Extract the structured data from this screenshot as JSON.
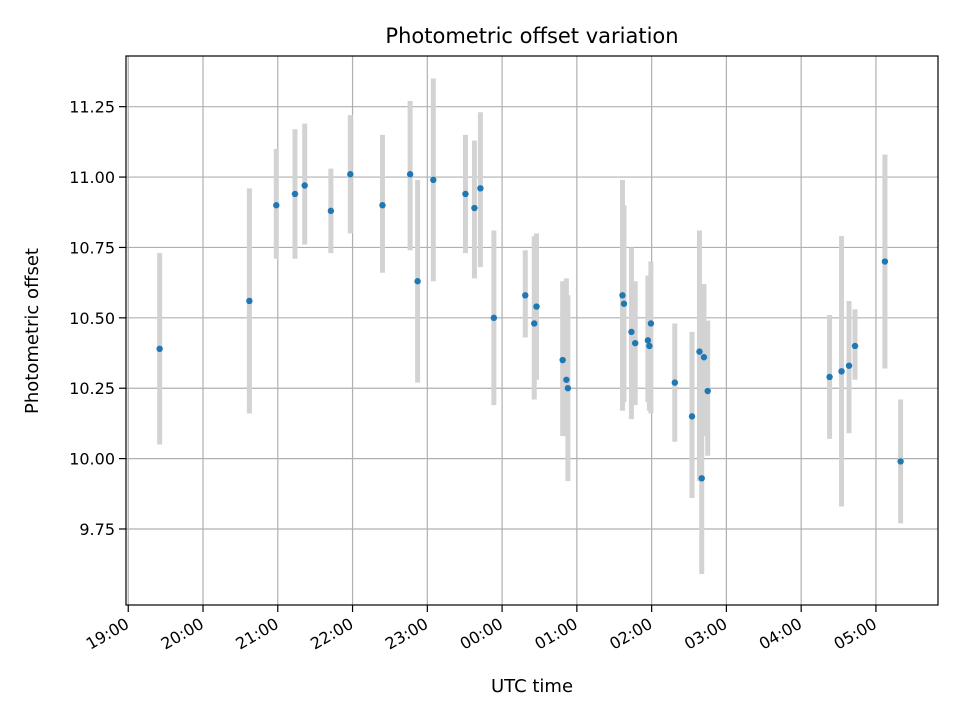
{
  "chart_data": {
    "type": "scatter",
    "title": "Photometric offset variation",
    "xlabel": "UTC time",
    "ylabel": "Photometric offset",
    "x_unit": "hours",
    "x_ticks": [
      {
        "value": 19,
        "label": "19:00"
      },
      {
        "value": 20,
        "label": "20:00"
      },
      {
        "value": 21,
        "label": "21:00"
      },
      {
        "value": 22,
        "label": "22:00"
      },
      {
        "value": 23,
        "label": "23:00"
      },
      {
        "value": 24,
        "label": "00:00"
      },
      {
        "value": 25,
        "label": "01:00"
      },
      {
        "value": 26,
        "label": "02:00"
      },
      {
        "value": 27,
        "label": "03:00"
      },
      {
        "value": 28,
        "label": "04:00"
      },
      {
        "value": 29,
        "label": "05:00"
      }
    ],
    "y_ticks": [
      {
        "value": 9.75,
        "label": "9.75"
      },
      {
        "value": 10.0,
        "label": "10.00"
      },
      {
        "value": 10.25,
        "label": "10.25"
      },
      {
        "value": 10.5,
        "label": "10.50"
      },
      {
        "value": 10.75,
        "label": "10.75"
      },
      {
        "value": 11.0,
        "label": "11.00"
      },
      {
        "value": 11.25,
        "label": "11.25"
      }
    ],
    "xlim": [
      18.97,
      29.83
    ],
    "ylim": [
      9.48,
      11.43
    ],
    "grid": true,
    "marker_color": "#1f77b4",
    "errorbar_color": "#d3d3d3",
    "series": [
      {
        "points": [
          {
            "x": 19.42,
            "y": 10.39,
            "lo": 10.05,
            "hi": 10.73
          },
          {
            "x": 20.62,
            "y": 10.56,
            "lo": 10.16,
            "hi": 10.96
          },
          {
            "x": 20.98,
            "y": 10.9,
            "lo": 10.71,
            "hi": 11.1
          },
          {
            "x": 21.23,
            "y": 10.94,
            "lo": 10.71,
            "hi": 11.17
          },
          {
            "x": 21.36,
            "y": 10.97,
            "lo": 10.76,
            "hi": 11.19
          },
          {
            "x": 21.71,
            "y": 10.88,
            "lo": 10.73,
            "hi": 11.03
          },
          {
            "x": 21.97,
            "y": 11.01,
            "lo": 10.8,
            "hi": 11.22
          },
          {
            "x": 22.4,
            "y": 10.9,
            "lo": 10.66,
            "hi": 11.15
          },
          {
            "x": 22.77,
            "y": 11.01,
            "lo": 10.74,
            "hi": 11.27
          },
          {
            "x": 22.87,
            "y": 10.63,
            "lo": 10.27,
            "hi": 10.99
          },
          {
            "x": 23.08,
            "y": 10.99,
            "lo": 10.63,
            "hi": 11.35
          },
          {
            "x": 23.51,
            "y": 10.94,
            "lo": 10.73,
            "hi": 11.15
          },
          {
            "x": 23.63,
            "y": 10.89,
            "lo": 10.64,
            "hi": 11.13
          },
          {
            "x": 23.71,
            "y": 10.96,
            "lo": 10.68,
            "hi": 11.23
          },
          {
            "x": 23.89,
            "y": 10.5,
            "lo": 10.19,
            "hi": 10.81
          },
          {
            "x": 24.31,
            "y": 10.58,
            "lo": 10.43,
            "hi": 10.74
          },
          {
            "x": 24.43,
            "y": 10.48,
            "lo": 10.21,
            "hi": 10.79
          },
          {
            "x": 24.46,
            "y": 10.54,
            "lo": 10.28,
            "hi": 10.8
          },
          {
            "x": 24.81,
            "y": 10.35,
            "lo": 10.08,
            "hi": 10.63
          },
          {
            "x": 24.86,
            "y": 10.28,
            "lo": 10.08,
            "hi": 10.64
          },
          {
            "x": 24.88,
            "y": 10.25,
            "lo": 9.92,
            "hi": 10.58
          },
          {
            "x": 25.61,
            "y": 10.58,
            "lo": 10.17,
            "hi": 10.99
          },
          {
            "x": 25.63,
            "y": 10.55,
            "lo": 10.2,
            "hi": 10.9
          },
          {
            "x": 25.73,
            "y": 10.45,
            "lo": 10.14,
            "hi": 10.75
          },
          {
            "x": 25.78,
            "y": 10.41,
            "lo": 10.19,
            "hi": 10.63
          },
          {
            "x": 25.95,
            "y": 10.42,
            "lo": 10.2,
            "hi": 10.65
          },
          {
            "x": 25.97,
            "y": 10.4,
            "lo": 10.17,
            "hi": 10.62
          },
          {
            "x": 25.99,
            "y": 10.48,
            "lo": 10.16,
            "hi": 10.7
          },
          {
            "x": 26.31,
            "y": 10.27,
            "lo": 10.06,
            "hi": 10.48
          },
          {
            "x": 26.54,
            "y": 10.15,
            "lo": 9.86,
            "hi": 10.45
          },
          {
            "x": 26.64,
            "y": 10.38,
            "lo": 9.92,
            "hi": 10.81
          },
          {
            "x": 26.67,
            "y": 9.93,
            "lo": 9.59,
            "hi": 10.27
          },
          {
            "x": 26.7,
            "y": 10.36,
            "lo": 10.08,
            "hi": 10.62
          },
          {
            "x": 26.75,
            "y": 10.24,
            "lo": 10.01,
            "hi": 10.49
          },
          {
            "x": 28.38,
            "y": 10.29,
            "lo": 10.07,
            "hi": 10.51
          },
          {
            "x": 28.54,
            "y": 10.31,
            "lo": 9.83,
            "hi": 10.79
          },
          {
            "x": 28.64,
            "y": 10.33,
            "lo": 10.09,
            "hi": 10.56
          },
          {
            "x": 28.72,
            "y": 10.4,
            "lo": 10.28,
            "hi": 10.53
          },
          {
            "x": 29.12,
            "y": 10.7,
            "lo": 10.32,
            "hi": 11.08
          },
          {
            "x": 29.33,
            "y": 9.99,
            "lo": 9.77,
            "hi": 10.21
          }
        ]
      }
    ]
  }
}
